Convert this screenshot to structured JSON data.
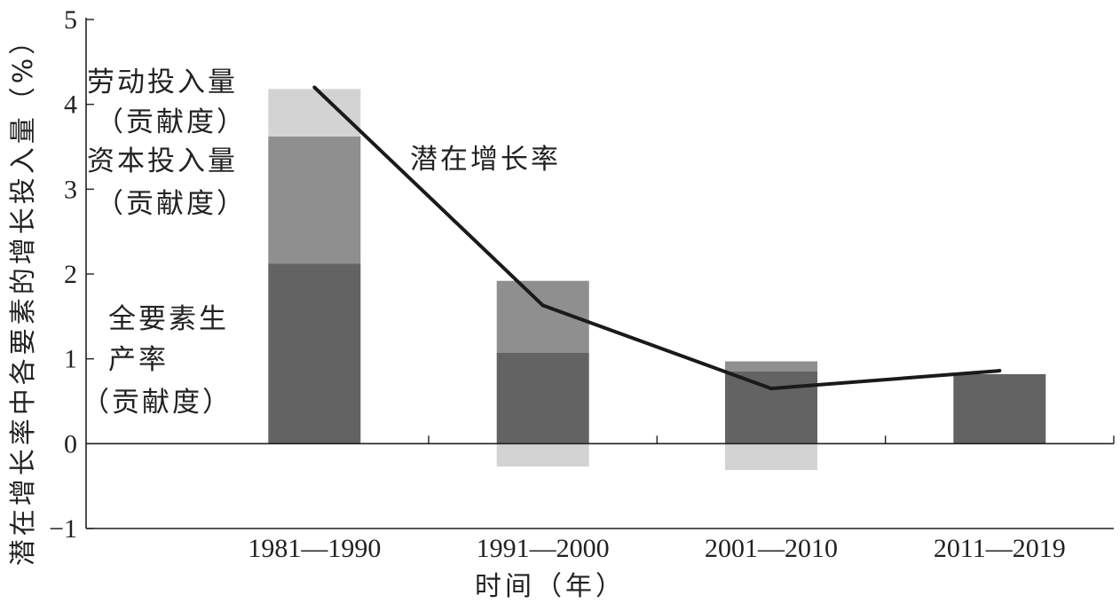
{
  "chart_data": {
    "type": "bar",
    "stacked": true,
    "categories": [
      "1981—1990",
      "1991—2000",
      "2001—2010",
      "2011—2019"
    ],
    "series": [
      {
        "name": "全要素生产率（贡献度）",
        "values": [
          2.12,
          1.07,
          0.85,
          0.82
        ],
        "color": "#636363"
      },
      {
        "name": "资本投入量（贡献度）",
        "values": [
          1.5,
          0.85,
          0.12,
          0.0
        ],
        "color": "#8f8f8f"
      },
      {
        "name": "劳动投入量（贡献度）",
        "values": [
          0.56,
          -0.27,
          -0.31,
          0.0
        ],
        "color": "#d3d3d3"
      }
    ],
    "line": {
      "name": "潜在增长率",
      "values": [
        4.2,
        1.63,
        0.65,
        0.86
      ],
      "color": "#1a1a1a"
    },
    "xlabel": "时间（年）",
    "ylabel": "潜在增长率中各要素的增长投入量（%）",
    "ylim": [
      -1,
      5
    ],
    "yticks": [
      "−1",
      "0",
      "1",
      "2",
      "3",
      "4",
      "5"
    ],
    "legend": "inline-labels",
    "grid": false
  },
  "annotations": {
    "labor_line1": "劳动投入量",
    "labor_line2": "（贡献度）",
    "capital_line1": "资本投入量",
    "capital_line2": "（贡献度）",
    "tfp_line1": "全要素生",
    "tfp_line2": "产率",
    "tfp_line3": "（贡献度）",
    "potential_growth": "潜在增长率"
  }
}
